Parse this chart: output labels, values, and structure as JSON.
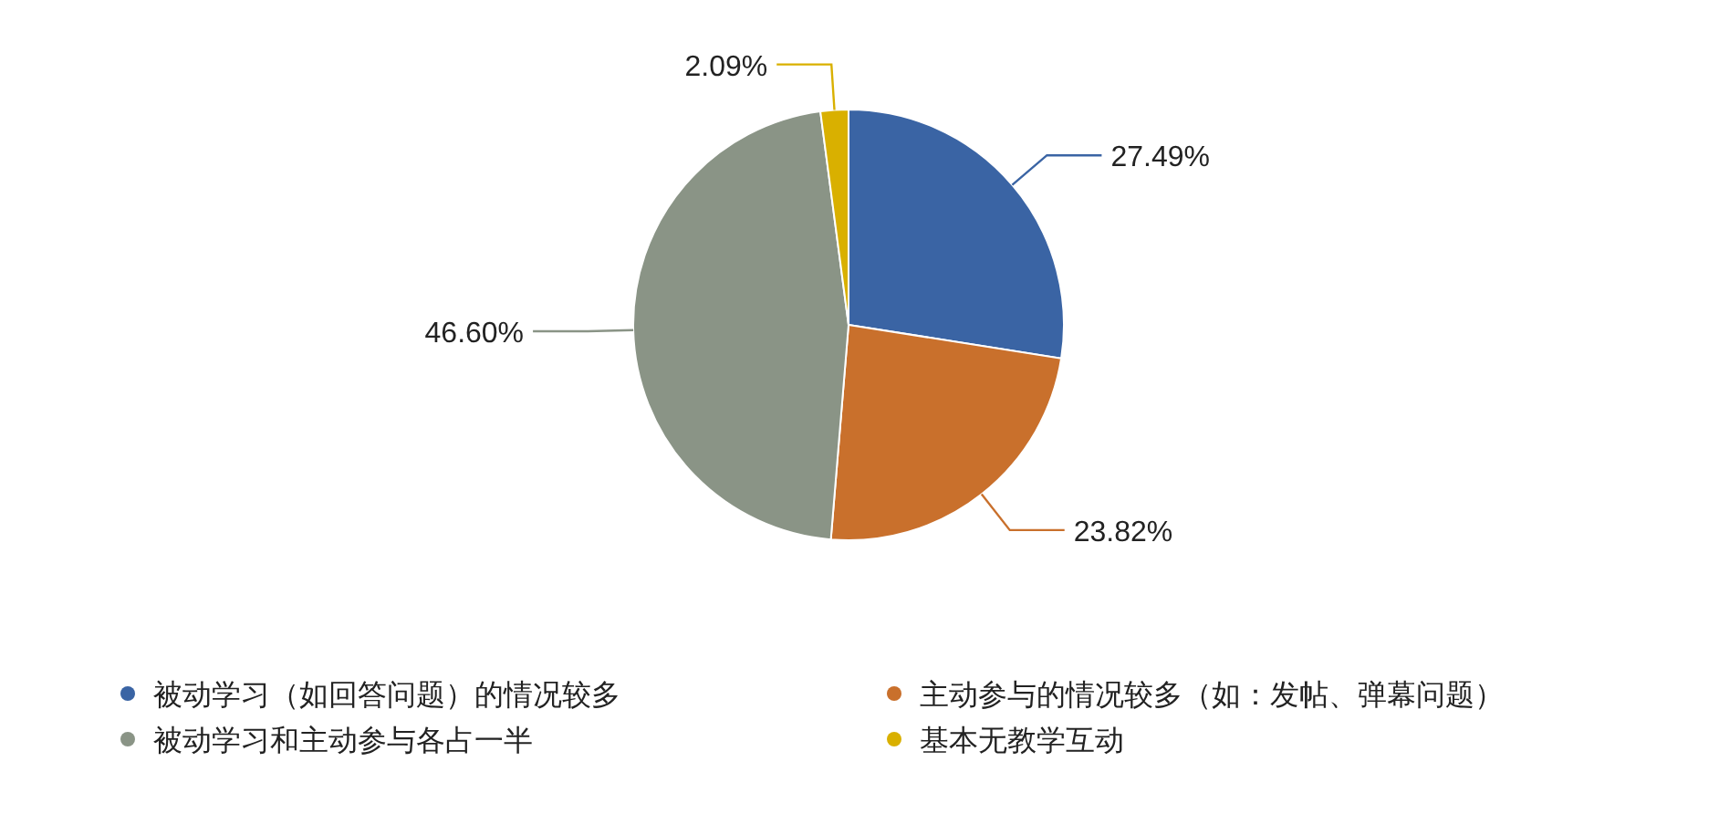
{
  "chart_data": {
    "type": "pie",
    "categories": [
      "被动学习（如回答问题）的情况较多",
      "主动参与的情况较多（如：发帖、弹幕问题）",
      "被动学习和主动参与各占一半",
      "基本无教学互动"
    ],
    "values": [
      27.49,
      23.82,
      46.6,
      2.09
    ],
    "colors": [
      "#3a64a4",
      "#c9702c",
      "#8a9486",
      "#d9b000"
    ],
    "value_labels": [
      "27.49%",
      "23.82%",
      "46.60%",
      "2.09%"
    ],
    "legend": "bottom"
  }
}
